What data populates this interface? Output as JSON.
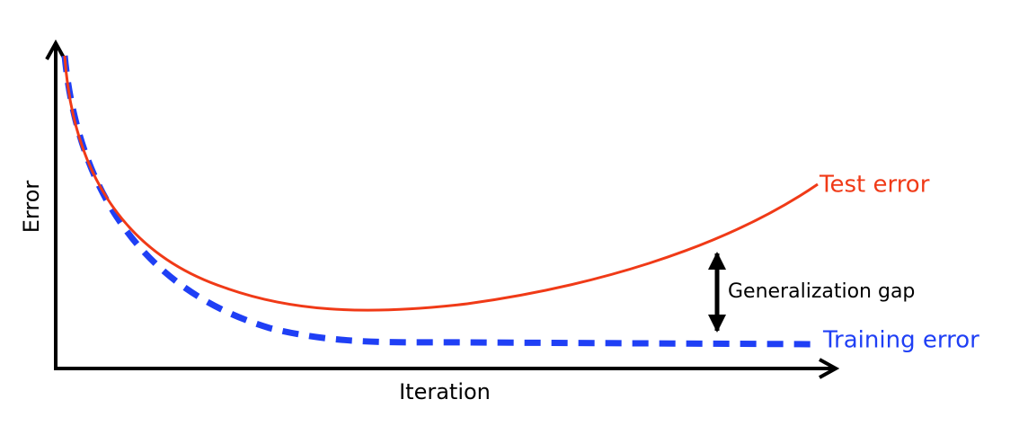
{
  "axes": {
    "y_label": "Error",
    "x_label": "Iteration"
  },
  "curves": [
    {
      "label": "Test error"
    },
    {
      "label": "Training error"
    }
  ],
  "annotation": "Generalization gap"
}
